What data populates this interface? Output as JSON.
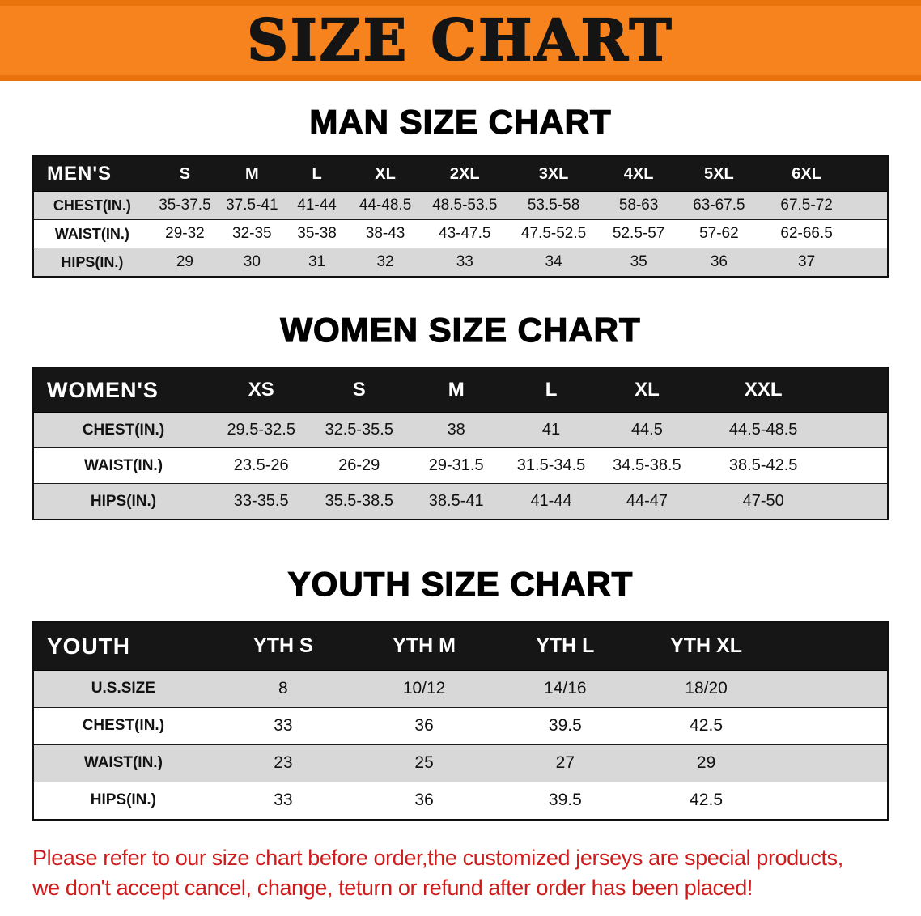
{
  "banner": {
    "title": "SIZE CHART"
  },
  "colors": {
    "banner_orange": "#f6831d",
    "banner_orange_edge": "#e9720c",
    "header_black": "#161616",
    "stripe_gray": "#d8d8d8",
    "disclaimer_red": "#cf1b1b"
  },
  "sections": [
    {
      "id": "men",
      "heading": "MAN SIZE CHART",
      "table": {
        "header": [
          "MEN'S",
          "S",
          "M",
          "L",
          "XL",
          "2XL",
          "3XL",
          "4XL",
          "5XL",
          "6XL"
        ],
        "rows": [
          [
            "CHEST(IN.)",
            "35-37.5",
            "37.5-41",
            "41-44",
            "44-48.5",
            "48.5-53.5",
            "53.5-58",
            "58-63",
            "63-67.5",
            "67.5-72"
          ],
          [
            "WAIST(IN.)",
            "29-32",
            "32-35",
            "35-38",
            "38-43",
            "43-47.5",
            "47.5-52.5",
            "52.5-57",
            "57-62",
            "62-66.5"
          ],
          [
            "HIPS(IN.)",
            "29",
            "30",
            "31",
            "32",
            "33",
            "34",
            "35",
            "36",
            "37"
          ]
        ]
      }
    },
    {
      "id": "women",
      "heading": "WOMEN SIZE CHART",
      "table": {
        "header": [
          "WOMEN'S",
          "XS",
          "S",
          "M",
          "L",
          "XL",
          "XXL"
        ],
        "rows": [
          [
            "CHEST(IN.)",
            "29.5-32.5",
            "32.5-35.5",
            "38",
            "41",
            "44.5",
            "44.5-48.5"
          ],
          [
            "WAIST(IN.)",
            "23.5-26",
            "26-29",
            "29-31.5",
            "31.5-34.5",
            "34.5-38.5",
            "38.5-42.5"
          ],
          [
            "HIPS(IN.)",
            "33-35.5",
            "35.5-38.5",
            "38.5-41",
            "41-44",
            "44-47",
            "47-50"
          ]
        ]
      }
    },
    {
      "id": "youth",
      "heading": "YOUTH SIZE CHART",
      "table": {
        "header": [
          "YOUTH",
          "YTH S",
          "YTH M",
          "YTH L",
          "YTH XL"
        ],
        "rows": [
          [
            "U.S.SIZE",
            "8",
            "10/12",
            "14/16",
            "18/20"
          ],
          [
            "CHEST(IN.)",
            "33",
            "36",
            "39.5",
            "42.5"
          ],
          [
            "WAIST(IN.)",
            "23",
            "25",
            "27",
            "29"
          ],
          [
            "HIPS(IN.)",
            "33",
            "36",
            "39.5",
            "42.5"
          ]
        ]
      }
    }
  ],
  "disclaimer": {
    "line1": "Please refer to our size chart before order,the customized jerseys are special products,",
    "line2": "we don't accept cancel, change, teturn or refund after order has been placed!"
  }
}
